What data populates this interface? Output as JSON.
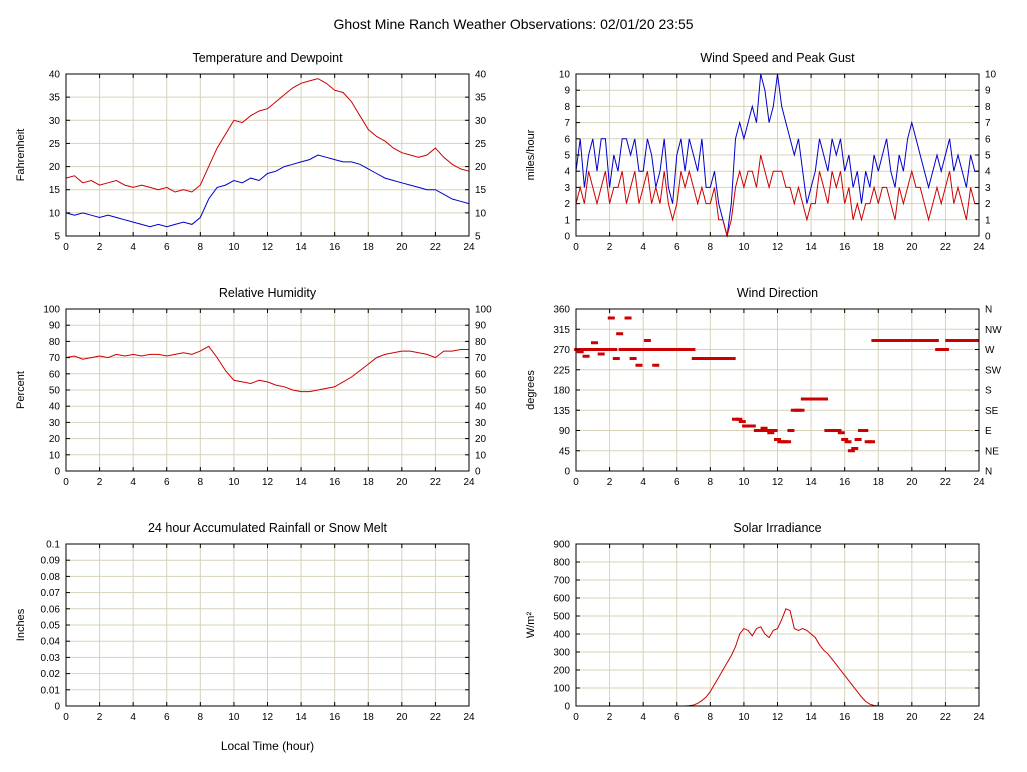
{
  "title": "Ghost Mine Ranch Weather Observations: 02/01/20 23:55",
  "grid_color": "#d8d2b8",
  "frame_color": "#000000",
  "x_axis": {
    "lim": [
      0,
      24
    ],
    "ticks": [
      0,
      2,
      4,
      6,
      8,
      10,
      12,
      14,
      16,
      18,
      20,
      22,
      24
    ]
  },
  "chart_data": [
    {
      "id": "temp",
      "type": "line",
      "title": "Temperature and Dewpoint",
      "ylabel": "Fahrenheit",
      "ylim": [
        5,
        40
      ],
      "yticks": [
        5,
        10,
        15,
        20,
        25,
        30,
        35,
        40
      ],
      "right_ticks": true,
      "series": [
        {
          "name": "Temperature",
          "color": "#cc0000",
          "x_start": 0,
          "x_step": 0.5,
          "y": [
            17.5,
            18,
            16.5,
            17,
            16,
            16.5,
            17,
            16,
            15.5,
            16,
            15.5,
            15,
            15.5,
            14.5,
            15,
            14.5,
            16,
            20,
            24,
            27,
            30,
            29.5,
            31,
            32,
            32.5,
            34,
            35.5,
            37,
            38,
            38.5,
            39,
            38,
            36.5,
            36,
            34,
            31,
            28,
            26.5,
            25.5,
            24,
            23,
            22.5,
            22,
            22.5,
            24,
            22,
            20.5,
            19.5,
            19
          ]
        },
        {
          "name": "Dewpoint",
          "color": "#0000cc",
          "x_start": 0,
          "x_step": 0.5,
          "y": [
            10,
            9.5,
            10,
            9.5,
            9,
            9.5,
            9,
            8.5,
            8,
            7.5,
            7,
            7.5,
            7,
            7.5,
            8,
            7.5,
            9,
            13,
            15.5,
            16,
            17,
            16.5,
            17.5,
            17,
            18.5,
            19,
            20,
            20.5,
            21,
            21.5,
            22.5,
            22,
            21.5,
            21,
            21,
            20.5,
            19.5,
            18.5,
            17.5,
            17,
            16.5,
            16,
            15.5,
            15,
            15,
            14,
            13,
            12.5,
            12
          ]
        }
      ]
    },
    {
      "id": "wind",
      "type": "line",
      "title": "Wind Speed and Peak Gust",
      "ylabel": "miles/hour",
      "ylim": [
        0,
        10
      ],
      "yticks": [
        0,
        1,
        2,
        3,
        4,
        5,
        6,
        7,
        8,
        9,
        10
      ],
      "right_ticks": true,
      "series": [
        {
          "name": "Peak Gust",
          "color": "#0000cc",
          "x_start": 0,
          "x_step": 0.25,
          "y": [
            4,
            6,
            3,
            5,
            6,
            4,
            6,
            6,
            3,
            5,
            4,
            6,
            6,
            5,
            6,
            4,
            4,
            6,
            5,
            3,
            4,
            6,
            3,
            2,
            5,
            6,
            4,
            6,
            5,
            4,
            6,
            3,
            3,
            4,
            2,
            1,
            0,
            2,
            6,
            7,
            6,
            7,
            8,
            7,
            10,
            9,
            7,
            8,
            10,
            8,
            7,
            6,
            5,
            6,
            4,
            2,
            3,
            4,
            6,
            5,
            4,
            6,
            5,
            6,
            4,
            5,
            3,
            4,
            2,
            4,
            3,
            5,
            4,
            5,
            6,
            4,
            3,
            5,
            4,
            6,
            7,
            6,
            5,
            4,
            3,
            4,
            5,
            4,
            5,
            6,
            4,
            5,
            4,
            3,
            5,
            4,
            4
          ]
        },
        {
          "name": "Wind Speed",
          "color": "#cc0000",
          "x_start": 0,
          "x_step": 0.25,
          "y": [
            2,
            3,
            2,
            4,
            3,
            2,
            3,
            4,
            2,
            3,
            3,
            4,
            2,
            3,
            4,
            2,
            3,
            4,
            2,
            3,
            2,
            4,
            2,
            1,
            2,
            4,
            3,
            4,
            3,
            2,
            3,
            2,
            2,
            3,
            1,
            1,
            0,
            1,
            3,
            4,
            3,
            4,
            4,
            3,
            5,
            4,
            3,
            4,
            4,
            4,
            3,
            3,
            2,
            3,
            2,
            1,
            2,
            2,
            4,
            3,
            2,
            4,
            3,
            4,
            2,
            3,
            1,
            2,
            1,
            2,
            2,
            3,
            2,
            3,
            3,
            2,
            1,
            3,
            2,
            3,
            4,
            3,
            3,
            2,
            1,
            2,
            3,
            2,
            3,
            4,
            2,
            3,
            2,
            1,
            3,
            2,
            2
          ]
        }
      ]
    },
    {
      "id": "humidity",
      "type": "line",
      "title": "Relative Humidity",
      "ylabel": "Percent",
      "ylim": [
        0,
        100
      ],
      "yticks": [
        0,
        10,
        20,
        30,
        40,
        50,
        60,
        70,
        80,
        90,
        100
      ],
      "right_ticks": true,
      "series": [
        {
          "name": "Relative Humidity",
          "color": "#cc0000",
          "x_start": 0,
          "x_step": 0.5,
          "y": [
            70,
            71,
            69,
            70,
            71,
            70,
            72,
            71,
            72,
            71,
            72,
            72,
            71,
            72,
            73,
            72,
            74,
            77,
            70,
            62,
            56,
            55,
            54,
            56,
            55,
            53,
            52,
            50,
            49,
            49,
            50,
            51,
            52,
            55,
            58,
            62,
            66,
            70,
            72,
            73,
            74,
            74,
            73,
            72,
            70,
            74,
            74,
            75,
            75
          ]
        }
      ]
    },
    {
      "id": "winddir",
      "type": "scatter",
      "title": "Wind Direction",
      "ylabel": "degrees",
      "ylim": [
        0,
        360
      ],
      "yticks": [
        0,
        45,
        90,
        135,
        180,
        225,
        270,
        315,
        360
      ],
      "right_labels": [
        "N",
        "NE",
        "E",
        "SE",
        "S",
        "SW",
        "W",
        "NW",
        "N"
      ],
      "series": [
        {
          "name": "Wind Direction",
          "color": "#cc0000",
          "points": [
            [
              0.1,
              270
            ],
            [
              0.25,
              265
            ],
            [
              0.4,
              270
            ],
            [
              0.6,
              255
            ],
            [
              0.75,
              270
            ],
            [
              0.9,
              270
            ],
            [
              1.1,
              285
            ],
            [
              1.3,
              270
            ],
            [
              1.5,
              260
            ],
            [
              1.7,
              270
            ],
            [
              1.9,
              270
            ],
            [
              2.1,
              340
            ],
            [
              2.25,
              270
            ],
            [
              2.4,
              250
            ],
            [
              2.6,
              305
            ],
            [
              2.75,
              270
            ],
            [
              2.9,
              270
            ],
            [
              3.1,
              340
            ],
            [
              3.25,
              270
            ],
            [
              3.4,
              250
            ],
            [
              3.6,
              270
            ],
            [
              3.75,
              235
            ],
            [
              3.9,
              270
            ],
            [
              4.1,
              270
            ],
            [
              4.25,
              290
            ],
            [
              4.4,
              270
            ],
            [
              4.6,
              270
            ],
            [
              4.75,
              235
            ],
            [
              4.9,
              270
            ],
            [
              5.1,
              270
            ],
            [
              5.25,
              270
            ],
            [
              5.4,
              270
            ],
            [
              5.6,
              270
            ],
            [
              5.75,
              270
            ],
            [
              5.9,
              270
            ],
            [
              6.1,
              270
            ],
            [
              6.25,
              270
            ],
            [
              6.4,
              270
            ],
            [
              6.6,
              270
            ],
            [
              6.75,
              270
            ],
            [
              6.9,
              270
            ],
            [
              7.1,
              250
            ],
            [
              7.3,
              250
            ],
            [
              7.5,
              250
            ],
            [
              7.7,
              250
            ],
            [
              7.9,
              250
            ],
            [
              8.1,
              250
            ],
            [
              8.3,
              250
            ],
            [
              8.5,
              250
            ],
            [
              8.7,
              250
            ],
            [
              8.9,
              250
            ],
            [
              9.1,
              250
            ],
            [
              9.3,
              250
            ],
            [
              9.5,
              115
            ],
            [
              9.7,
              115
            ],
            [
              9.9,
              110
            ],
            [
              10.1,
              100
            ],
            [
              10.3,
              100
            ],
            [
              10.5,
              100
            ],
            [
              10.8,
              90
            ],
            [
              11,
              90
            ],
            [
              11.2,
              95
            ],
            [
              11.4,
              90
            ],
            [
              11.6,
              85
            ],
            [
              11.8,
              90
            ],
            [
              12,
              70
            ],
            [
              12.2,
              65
            ],
            [
              12.4,
              65
            ],
            [
              12.6,
              65
            ],
            [
              12.8,
              90
            ],
            [
              13,
              135
            ],
            [
              13.2,
              135
            ],
            [
              13.4,
              135
            ],
            [
              13.6,
              160
            ],
            [
              13.8,
              160
            ],
            [
              14,
              160
            ],
            [
              14.2,
              160
            ],
            [
              14.4,
              160
            ],
            [
              14.6,
              160
            ],
            [
              14.8,
              160
            ],
            [
              15,
              90
            ],
            [
              15.2,
              90
            ],
            [
              15.4,
              90
            ],
            [
              15.6,
              90
            ],
            [
              15.8,
              85
            ],
            [
              16,
              70
            ],
            [
              16.2,
              65
            ],
            [
              16.4,
              45
            ],
            [
              16.6,
              50
            ],
            [
              16.8,
              70
            ],
            [
              17,
              90
            ],
            [
              17.2,
              90
            ],
            [
              17.4,
              65
            ],
            [
              17.6,
              65
            ],
            [
              17.8,
              290
            ],
            [
              18,
              290
            ],
            [
              18.2,
              290
            ],
            [
              18.4,
              290
            ],
            [
              18.6,
              290
            ],
            [
              18.8,
              290
            ],
            [
              19,
              290
            ],
            [
              19.2,
              290
            ],
            [
              19.4,
              290
            ],
            [
              19.6,
              290
            ],
            [
              19.8,
              290
            ],
            [
              20,
              290
            ],
            [
              20.2,
              290
            ],
            [
              20.4,
              290
            ],
            [
              20.6,
              290
            ],
            [
              20.8,
              290
            ],
            [
              21,
              290
            ],
            [
              21.2,
              290
            ],
            [
              21.4,
              290
            ],
            [
              21.6,
              270
            ],
            [
              21.8,
              270
            ],
            [
              22,
              270
            ],
            [
              22.2,
              290
            ],
            [
              22.4,
              290
            ],
            [
              22.6,
              290
            ],
            [
              22.8,
              290
            ],
            [
              23,
              290
            ],
            [
              23.2,
              290
            ],
            [
              23.4,
              290
            ],
            [
              23.6,
              290
            ],
            [
              23.8,
              290
            ]
          ]
        }
      ]
    },
    {
      "id": "rain",
      "type": "line",
      "title": "24 hour Accumulated Rainfall or Snow Melt",
      "ylabel": "Inches",
      "xlabel": "Local Time (hour)",
      "ylim": [
        0,
        0.1
      ],
      "yticks": [
        0,
        0.01,
        0.02,
        0.03,
        0.04,
        0.05,
        0.06,
        0.07,
        0.08,
        0.09,
        0.1
      ],
      "ytick_labels": [
        "0",
        "0.01",
        "0.02",
        "0.03",
        "0.04",
        "0.05",
        "0.06",
        "0.07",
        "0.08",
        "0.09",
        "0.1"
      ],
      "right_ticks": false,
      "series": [
        {
          "name": "Rainfall",
          "color": "#cc0000",
          "x_start": 0,
          "x_step": 24,
          "y": [
            0,
            0
          ]
        }
      ]
    },
    {
      "id": "solar",
      "type": "line",
      "title": "Solar Irradiance",
      "ylabel": "W/m²",
      "ylim": [
        0,
        900
      ],
      "yticks": [
        0,
        100,
        200,
        300,
        400,
        500,
        600,
        700,
        800,
        900
      ],
      "right_ticks": false,
      "series": [
        {
          "name": "Solar Irradiance",
          "color": "#cc0000",
          "x_start": 0,
          "x_step": 0.25,
          "y": [
            0,
            0,
            0,
            0,
            0,
            0,
            0,
            0,
            0,
            0,
            0,
            0,
            0,
            0,
            0,
            0,
            0,
            0,
            0,
            0,
            0,
            0,
            0,
            0,
            0,
            0,
            0,
            2,
            5,
            15,
            30,
            50,
            80,
            120,
            160,
            200,
            240,
            280,
            330,
            400,
            430,
            420,
            390,
            430,
            440,
            400,
            380,
            420,
            430,
            480,
            540,
            530,
            430,
            420,
            430,
            420,
            400,
            380,
            340,
            310,
            290,
            260,
            230,
            200,
            170,
            140,
            110,
            80,
            50,
            25,
            10,
            3,
            0,
            0,
            0,
            0,
            0,
            0,
            0,
            0,
            0,
            0,
            0,
            0,
            0,
            0,
            0,
            0,
            0,
            0,
            0,
            0,
            0,
            0,
            0,
            0,
            0
          ]
        }
      ]
    }
  ]
}
